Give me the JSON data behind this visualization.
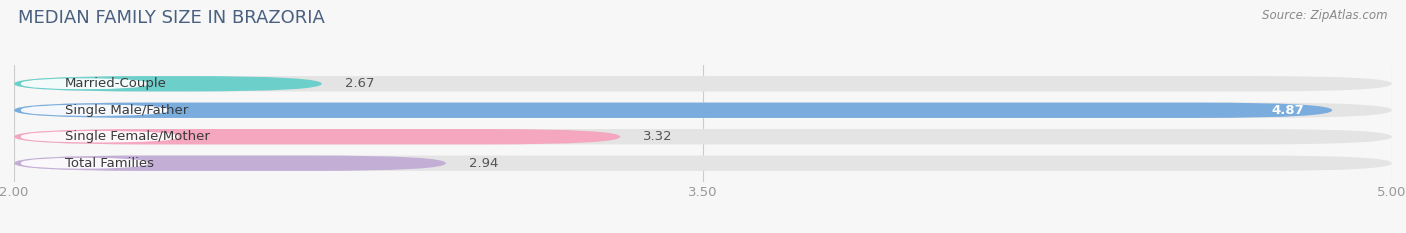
{
  "title": "MEDIAN FAMILY SIZE IN BRAZORIA",
  "source": "Source: ZipAtlas.com",
  "categories": [
    "Married-Couple",
    "Single Male/Father",
    "Single Female/Mother",
    "Total Families"
  ],
  "values": [
    2.67,
    4.87,
    3.32,
    2.94
  ],
  "bar_colors": [
    "#6dcfca",
    "#7aadde",
    "#f4a7bf",
    "#c3aed6"
  ],
  "background_color": "#f7f7f7",
  "bar_bg_color": "#e4e4e4",
  "xlim": [
    2.0,
    5.0
  ],
  "xticks": [
    2.0,
    3.5,
    5.0
  ],
  "xtick_labels": [
    "2.00",
    "3.50",
    "5.00"
  ],
  "bar_height": 0.58,
  "label_fontsize": 9.5,
  "title_fontsize": 13,
  "value_fontsize": 9.5,
  "title_color": "#4a6080",
  "source_color": "#888888",
  "tick_color": "#999999",
  "value_color_inside": "#ffffff",
  "value_color_outside": "#555555"
}
